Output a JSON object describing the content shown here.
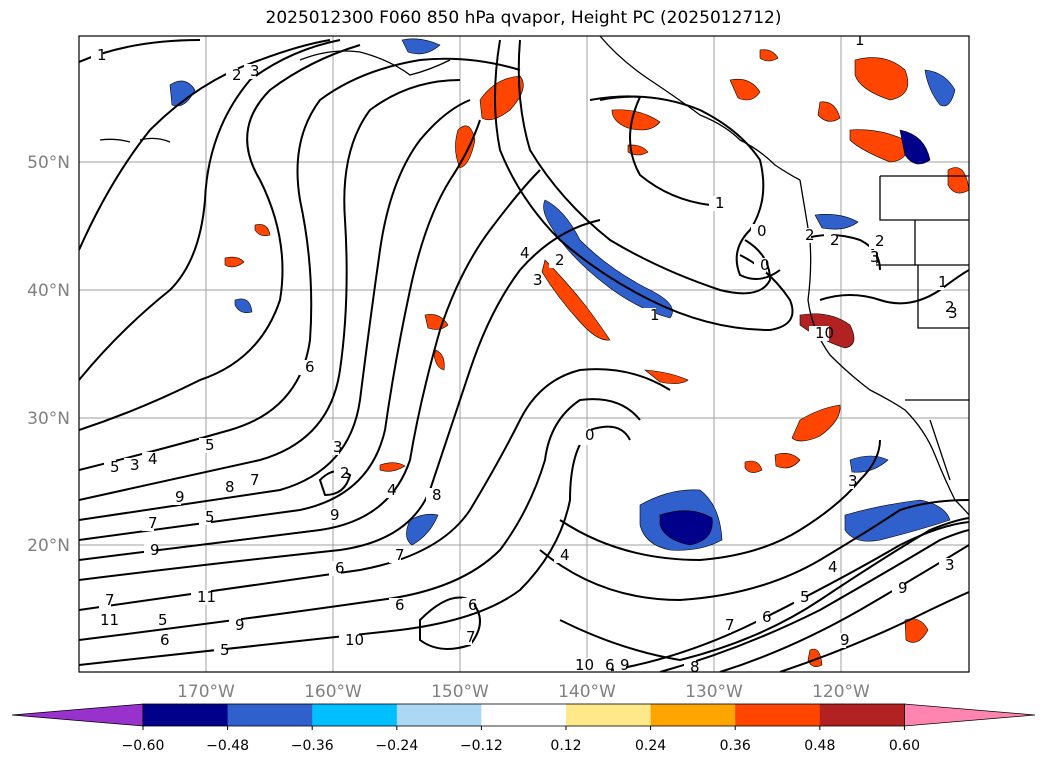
{
  "title": "2025012300 F060 850 hPa qvapor, Height PC (2025012712)",
  "map": {
    "lat_labels": [
      "50°N",
      "40°N",
      "30°N",
      "20°N"
    ],
    "lon_labels": [
      "170°W",
      "160°W",
      "150°W",
      "140°W",
      "130°W",
      "120°W"
    ],
    "grid": true
  },
  "colorbar": {
    "colors": [
      "#9932cc",
      "#00008b",
      "#3060cc",
      "#00bfff",
      "#add8f5",
      "#ffffff",
      "#ffe88a",
      "#ffa500",
      "#ff4500",
      "#b22222",
      "#ff85b0"
    ],
    "ticks": [
      "−0.60",
      "−0.48",
      "−0.36",
      "−0.24",
      "−0.12",
      "0.12",
      "0.24",
      "0.36",
      "0.48",
      "0.60"
    ]
  },
  "contour_labels": [
    "1",
    "2",
    "3",
    "1",
    "2",
    "3",
    "4",
    "3",
    "2",
    "1",
    "0",
    "0",
    "1",
    "2",
    "3",
    "2",
    "6",
    "5",
    "3",
    "2",
    "4",
    "3",
    "4",
    "5",
    "6",
    "7",
    "8",
    "9",
    "8",
    "7",
    "6",
    "5",
    "6",
    "7",
    "9",
    "10",
    "11",
    "9",
    "10",
    "9",
    "8",
    "7",
    "6",
    "5",
    "4",
    "3",
    "2",
    "1",
    "10",
    "11",
    "9",
    "3",
    "5",
    "9",
    "7",
    "6",
    "9",
    "7",
    "6",
    "5",
    "4",
    "3",
    "2",
    "1",
    "0"
  ]
}
